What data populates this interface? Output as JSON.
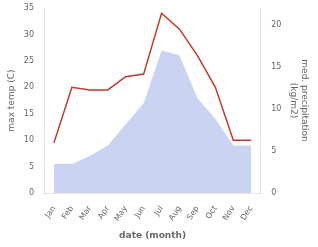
{
  "chart_data": {
    "type": "line",
    "categories": [
      "Jan",
      "Feb",
      "Mar",
      "Apr",
      "May",
      "Jun",
      "Jul",
      "Aug",
      "Sep",
      "Oct",
      "Nov",
      "Dec"
    ],
    "series": [
      {
        "type": "area",
        "color": "#b8c4ed",
        "values": [
          5.5,
          5.5,
          7.0,
          9.0,
          13.0,
          17.0,
          27.0,
          26.0,
          18.0,
          14.0,
          9.0,
          9.0
        ]
      },
      {
        "type": "line",
        "color": "#c0392b",
        "values": [
          9.5,
          20.0,
          19.5,
          19.5,
          22.0,
          22.5,
          34.0,
          31.0,
          26.0,
          20.0,
          10.0,
          10.0
        ]
      }
    ],
    "xlabel": "date (month)",
    "ylabel": "max temp (C)",
    "y2label": "med. precipitation\n(kg/m2)",
    "ylim": [
      0,
      35
    ],
    "yticks": [
      0,
      5,
      10,
      15,
      20,
      25,
      30,
      35
    ],
    "y2lim": [
      0,
      22
    ],
    "y2ticks": [
      0,
      5,
      10,
      15,
      20
    ],
    "grid": false
  }
}
